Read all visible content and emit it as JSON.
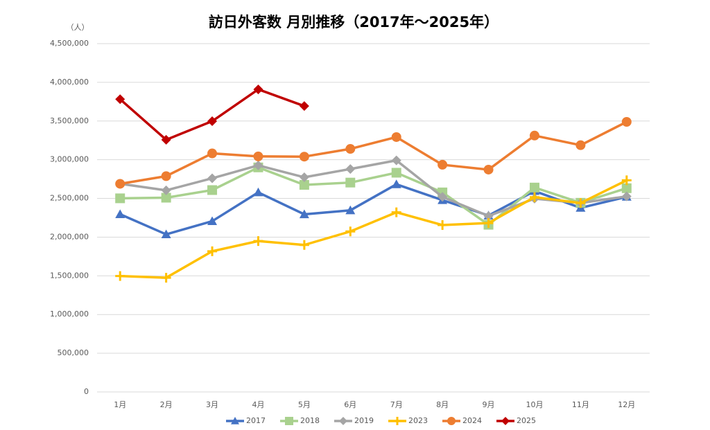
{
  "chart_data": {
    "type": "line",
    "title": "訪日外客数 月別推移（2017年～2025年）",
    "y_unit": "（人）",
    "categories": [
      "1月",
      "2月",
      "3月",
      "4月",
      "5月",
      "6月",
      "7月",
      "8月",
      "9月",
      "10月",
      "11月",
      "12月"
    ],
    "series": [
      {
        "name": "2017",
        "color": "#4472c4",
        "marker": "triangle",
        "values": [
          2295700,
          2035800,
          2205700,
          2578000,
          2294700,
          2346400,
          2682200,
          2478000,
          2279000,
          2595100,
          2377900,
          2521000
        ]
      },
      {
        "name": "2018",
        "color": "#a9d18e",
        "marker": "square",
        "values": [
          2501400,
          2509300,
          2607900,
          2900700,
          2675100,
          2704600,
          2832000,
          2578000,
          2159600,
          2640600,
          2443900,
          2632000
        ]
      },
      {
        "name": "2019",
        "color": "#a5a5a5",
        "marker": "diamond",
        "values": [
          2689300,
          2604300,
          2760100,
          2926700,
          2773100,
          2880000,
          2991200,
          2520100,
          2272900,
          2496600,
          2441300,
          2526400
        ]
      },
      {
        "name": "2023",
        "color": "#ffc000",
        "marker": "plus",
        "values": [
          1497300,
          1475500,
          1817500,
          1949100,
          1898900,
          2073300,
          2320600,
          2155800,
          2182000,
          2516500,
          2440200,
          2734000
        ]
      },
      {
        "name": "2024",
        "color": "#ed7d31",
        "marker": "circle",
        "values": [
          2688500,
          2788000,
          3081800,
          3042800,
          3040000,
          3140000,
          3292500,
          2935000,
          2872200,
          3312000,
          3188000,
          3489000
        ]
      },
      {
        "name": "2025",
        "color": "#c00000",
        "marker": "diamond",
        "values": [
          3781600,
          3258000,
          3497600,
          3908900,
          3693300,
          null,
          null,
          null,
          null,
          null,
          null,
          null
        ]
      }
    ],
    "ylim": [
      0,
      4500000
    ],
    "yticks": [
      0,
      {
        "value": 500000,
        "label": "500,000"
      },
      {
        "value": 1000000,
        "label": "1,000,000"
      },
      {
        "value": 1500000,
        "label": "1,500,000"
      },
      {
        "value": 2000000,
        "label": "2,000,000"
      },
      {
        "value": 2500000,
        "label": "2,500,000"
      },
      {
        "value": 3000000,
        "label": "3,000,000"
      },
      {
        "value": 3500000,
        "label": "3,500,000"
      },
      {
        "value": 4000000,
        "label": "4,000,000"
      },
      {
        "value": 4500000,
        "label": "4,500,000"
      }
    ],
    "grid": true,
    "legend": "bottom"
  }
}
